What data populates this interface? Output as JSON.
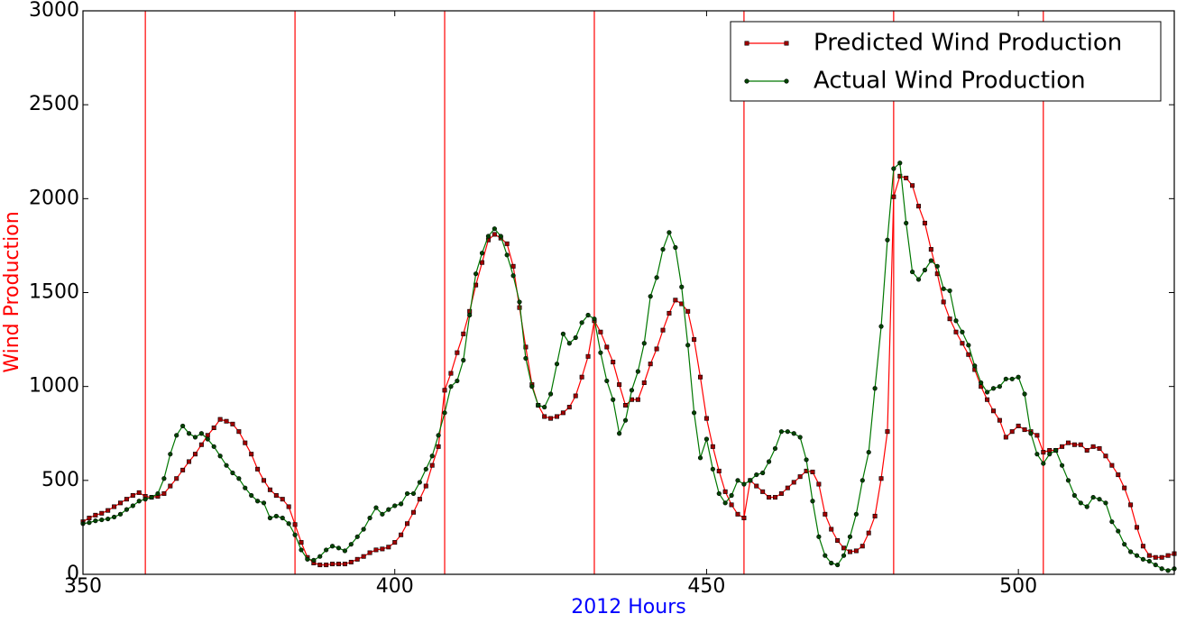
{
  "chart_data": {
    "type": "line",
    "xlabel": "2012 Hours",
    "xlabel_color": "#0000ff",
    "ylabel": "Wind Production",
    "ylabel_color": "#ff0000",
    "xlim": [
      350,
      525
    ],
    "ylim": [
      0,
      3000
    ],
    "xticks": [
      350,
      400,
      450,
      500
    ],
    "yticks": [
      0,
      500,
      1000,
      1500,
      2000,
      2500,
      3000
    ],
    "grid": false,
    "legend": "upper right",
    "vlines": [
      360,
      384,
      408,
      432,
      456,
      480,
      504
    ],
    "vline_color": "#ff0000",
    "x": [
      350,
      351,
      352,
      353,
      354,
      355,
      356,
      357,
      358,
      359,
      360,
      361,
      362,
      363,
      364,
      365,
      366,
      367,
      368,
      369,
      370,
      371,
      372,
      373,
      374,
      375,
      376,
      377,
      378,
      379,
      380,
      381,
      382,
      383,
      384,
      385,
      386,
      387,
      388,
      389,
      390,
      391,
      392,
      393,
      394,
      395,
      396,
      397,
      398,
      399,
      400,
      401,
      402,
      403,
      404,
      405,
      406,
      407,
      408,
      409,
      410,
      411,
      412,
      413,
      414,
      415,
      416,
      417,
      418,
      419,
      420,
      421,
      422,
      423,
      424,
      425,
      426,
      427,
      428,
      429,
      430,
      431,
      432,
      433,
      434,
      435,
      436,
      437,
      438,
      439,
      440,
      441,
      442,
      443,
      444,
      445,
      446,
      447,
      448,
      449,
      450,
      451,
      452,
      453,
      454,
      455,
      456,
      457,
      458,
      459,
      460,
      461,
      462,
      463,
      464,
      465,
      466,
      467,
      468,
      469,
      470,
      471,
      472,
      473,
      474,
      475,
      476,
      477,
      478,
      479,
      480,
      481,
      482,
      483,
      484,
      485,
      486,
      487,
      488,
      489,
      490,
      491,
      492,
      493,
      494,
      495,
      496,
      497,
      498,
      499,
      500,
      501,
      502,
      503,
      504,
      505,
      506,
      507,
      508,
      509,
      510,
      511,
      512,
      513,
      514,
      515,
      516,
      517,
      518,
      519,
      520,
      521,
      522,
      523,
      524,
      525
    ],
    "series": [
      {
        "name": "Predicted Wind Production",
        "color": "#ff0000",
        "marker": "square",
        "marker_color": "#a00000",
        "values": [
          280,
          300,
          315,
          325,
          340,
          360,
          380,
          400,
          420,
          435,
          415,
          410,
          415,
          430,
          470,
          510,
          555,
          600,
          640,
          690,
          740,
          780,
          825,
          815,
          800,
          760,
          700,
          640,
          560,
          500,
          450,
          420,
          400,
          360,
          265,
          170,
          90,
          60,
          50,
          50,
          55,
          55,
          55,
          65,
          80,
          95,
          115,
          130,
          135,
          145,
          170,
          210,
          270,
          330,
          400,
          470,
          580,
          680,
          980,
          1070,
          1180,
          1280,
          1400,
          1540,
          1660,
          1780,
          1810,
          1790,
          1760,
          1640,
          1420,
          1210,
          1010,
          900,
          840,
          830,
          840,
          860,
          890,
          950,
          1050,
          1160,
          1350,
          1290,
          1210,
          1130,
          1010,
          900,
          930,
          930,
          1020,
          1120,
          1200,
          1300,
          1390,
          1460,
          1440,
          1400,
          1250,
          1050,
          830,
          680,
          550,
          440,
          370,
          320,
          300,
          500,
          470,
          440,
          410,
          410,
          430,
          460,
          490,
          520,
          550,
          545,
          480,
          320,
          240,
          180,
          140,
          120,
          125,
          150,
          220,
          310,
          510,
          760,
          2010,
          2120,
          2110,
          2070,
          1960,
          1870,
          1730,
          1600,
          1450,
          1360,
          1290,
          1230,
          1170,
          1090,
          1000,
          930,
          870,
          820,
          730,
          760,
          790,
          770,
          760,
          740,
          650,
          660,
          660,
          680,
          700,
          690,
          690,
          660,
          680,
          670,
          630,
          580,
          530,
          460,
          370,
          250,
          150,
          100,
          90,
          90,
          100,
          110
        ]
      },
      {
        "name": "Actual Wind Production",
        "color": "#007700",
        "marker": "circle",
        "marker_color": "#004400",
        "values": [
          270,
          275,
          285,
          290,
          295,
          305,
          320,
          345,
          365,
          390,
          400,
          410,
          430,
          510,
          640,
          740,
          790,
          750,
          730,
          750,
          720,
          680,
          630,
          580,
          540,
          510,
          460,
          420,
          390,
          380,
          300,
          310,
          300,
          270,
          210,
          130,
          80,
          75,
          95,
          130,
          150,
          140,
          125,
          160,
          200,
          240,
          300,
          355,
          320,
          345,
          365,
          375,
          430,
          430,
          490,
          560,
          630,
          740,
          860,
          1000,
          1030,
          1140,
          1380,
          1600,
          1710,
          1800,
          1840,
          1800,
          1700,
          1590,
          1450,
          1150,
          1000,
          900,
          890,
          960,
          1120,
          1280,
          1230,
          1260,
          1340,
          1380,
          1360,
          1180,
          1030,
          930,
          750,
          820,
          980,
          1080,
          1230,
          1480,
          1580,
          1730,
          1820,
          1740,
          1530,
          1220,
          860,
          620,
          720,
          560,
          430,
          380,
          420,
          500,
          480,
          500,
          530,
          540,
          600,
          670,
          760,
          760,
          750,
          730,
          610,
          390,
          200,
          100,
          60,
          50,
          100,
          200,
          320,
          500,
          650,
          990,
          1320,
          1780,
          2160,
          2190,
          1870,
          1610,
          1570,
          1620,
          1670,
          1640,
          1520,
          1510,
          1350,
          1290,
          1220,
          1110,
          1020,
          970,
          990,
          1000,
          1040,
          1040,
          1050,
          960,
          750,
          640,
          590,
          640,
          660,
          580,
          500,
          420,
          380,
          360,
          410,
          400,
          380,
          280,
          230,
          160,
          120,
          100,
          80,
          70,
          50,
          30,
          20,
          30
        ]
      }
    ]
  }
}
